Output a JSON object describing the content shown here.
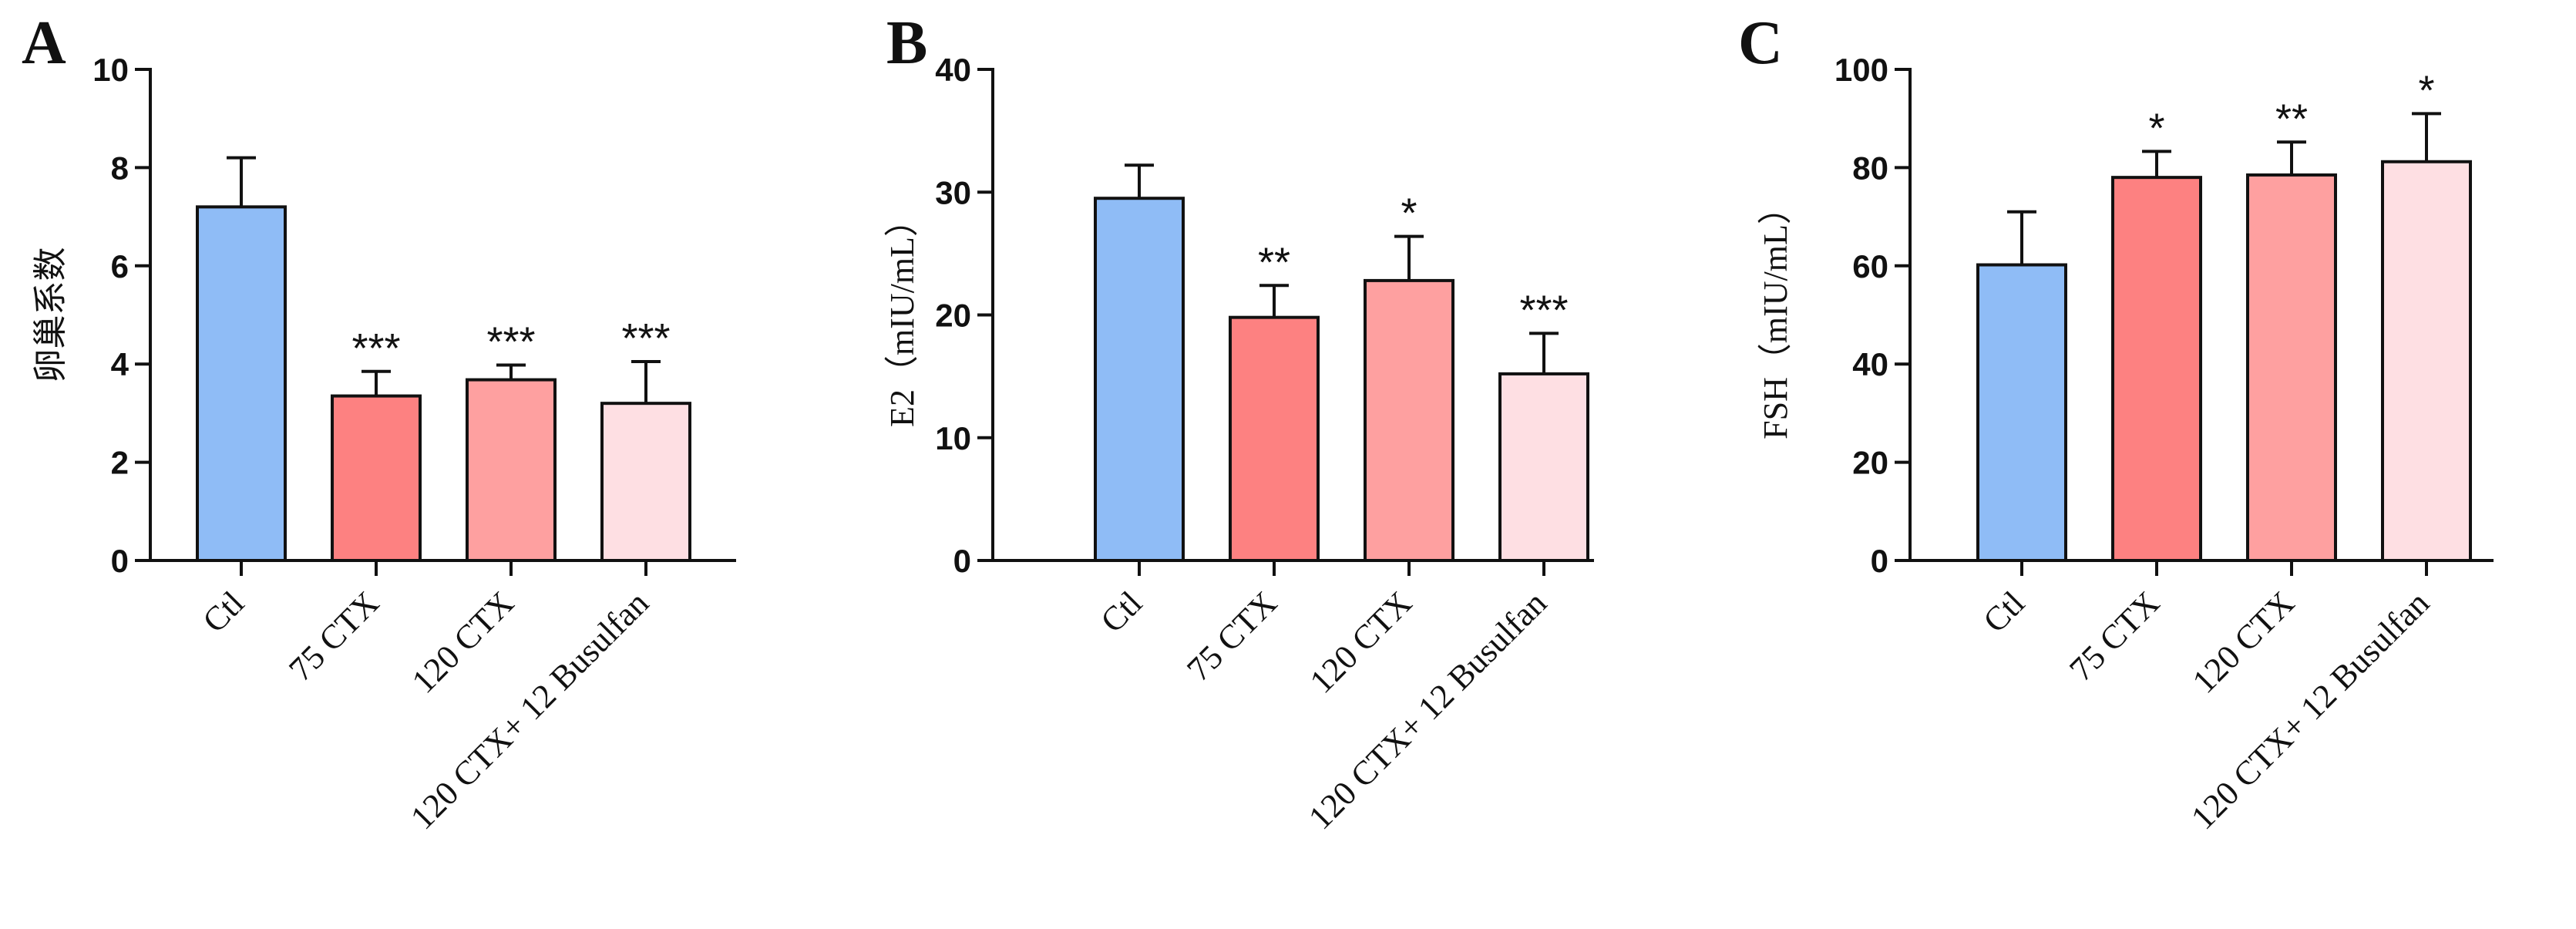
{
  "chart_data": [
    {
      "type": "bar",
      "panel": "A",
      "ylabel": "卵巢系数",
      "categories": [
        "Ctl",
        "75 CTX",
        "120 CTX",
        "120 CTX+ 12 Busulfan"
      ],
      "values": [
        7.2,
        3.35,
        3.68,
        3.2
      ],
      "errors": [
        1.0,
        0.5,
        0.3,
        0.85
      ],
      "significance": [
        "",
        "***",
        "***",
        "***"
      ],
      "ylim": [
        0,
        10
      ],
      "yticks": [
        0,
        2,
        4,
        6,
        8,
        10
      ],
      "colors": [
        "#8fbcf6",
        "#fd8181",
        "#fea0a0",
        "#fedfe3"
      ]
    },
    {
      "type": "bar",
      "panel": "B",
      "ylabel": "E2（mIU/mL）",
      "categories": [
        "Ctl",
        "75 CTX",
        "120 CTX",
        "120 CTX+ 12 Busulfan"
      ],
      "values": [
        29.5,
        19.8,
        22.8,
        15.2
      ],
      "errors": [
        2.7,
        2.6,
        3.6,
        3.3
      ],
      "significance": [
        "",
        "**",
        "*",
        "***"
      ],
      "ylim": [
        0,
        40
      ],
      "yticks": [
        0,
        10,
        20,
        30,
        40
      ],
      "colors": [
        "#8fbcf6",
        "#fd8181",
        "#fea0a0",
        "#fedfe3"
      ]
    },
    {
      "type": "bar",
      "panel": "C",
      "ylabel": "FSH（mIU/mL）",
      "categories": [
        "Ctl",
        "75 CTX",
        "120 CTX",
        "120 CTX+ 12 Busulfan"
      ],
      "values": [
        60.2,
        78.0,
        78.5,
        81.2
      ],
      "errors": [
        10.8,
        5.3,
        6.7,
        9.8
      ],
      "significance": [
        "",
        "*",
        "**",
        "*"
      ],
      "ylim": [
        0,
        100
      ],
      "yticks": [
        0,
        20,
        40,
        60,
        80,
        100
      ],
      "colors": [
        "#8fbcf6",
        "#fd8181",
        "#fea0a0",
        "#fedfe3"
      ]
    }
  ]
}
